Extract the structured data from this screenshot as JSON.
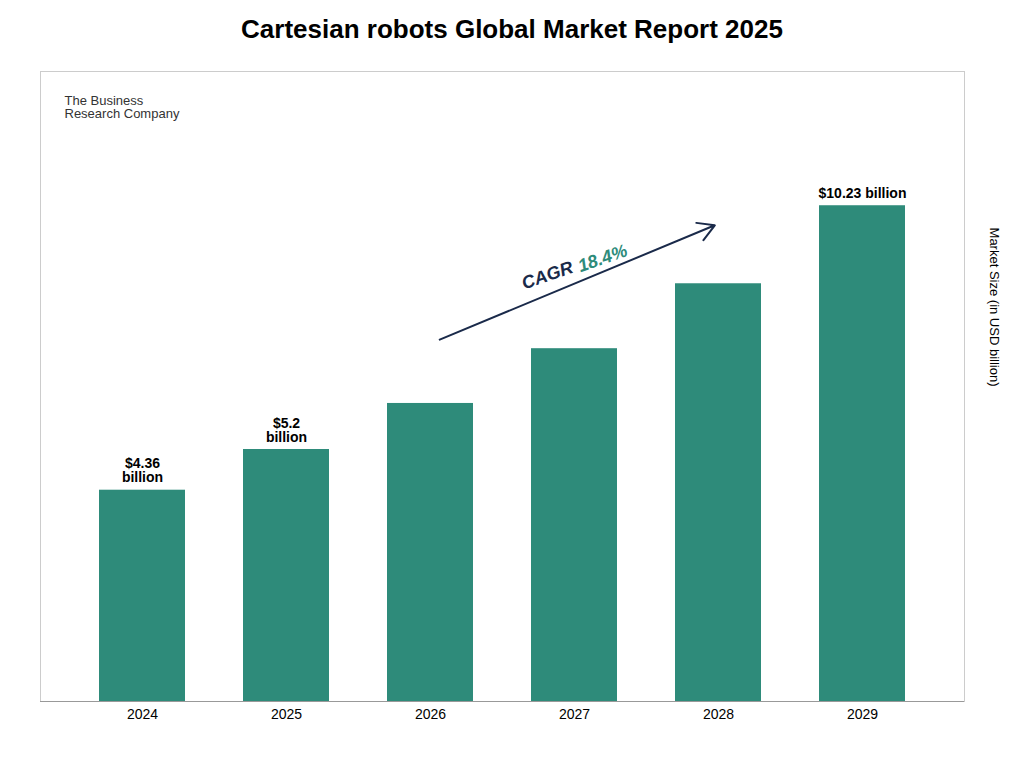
{
  "chart_data": {
    "type": "bar",
    "title": "Cartesian robots Global Market Report 2025",
    "categories": [
      "2024",
      "2025",
      "2026",
      "2027",
      "2028",
      "2029"
    ],
    "values": [
      4.36,
      5.2,
      6.15,
      7.28,
      8.62,
      10.23
    ],
    "value_labels": [
      "$4.36\nbillion",
      "$5.2\nbillion",
      null,
      null,
      null,
      "$10.23 billion"
    ],
    "color": "#2e8b7a",
    "ylabel": "Market Size (in USD billion)",
    "ylim": [
      0,
      13
    ],
    "yticks": [],
    "tick_labels": "x",
    "annotations": [
      {
        "text": "CAGR",
        "color": "#1a2a4a"
      },
      {
        "text": "18.4%",
        "color": "#2e8b7a"
      },
      {
        "text": "The Business\nResearch Company"
      }
    ]
  }
}
